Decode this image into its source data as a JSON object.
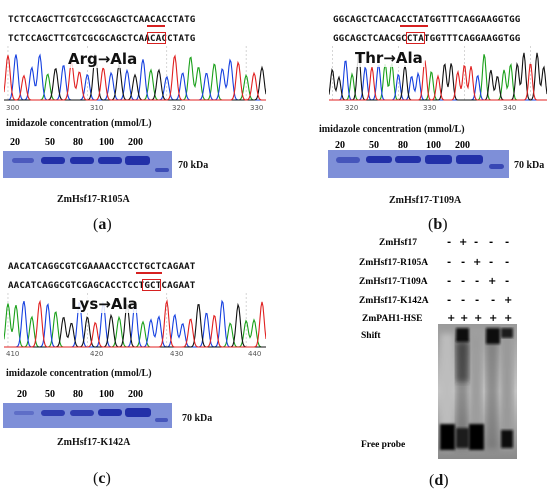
{
  "panels": {
    "a": {
      "seq_top": "TCTCCAGCTTCGTCCGGCAGCTCAACACCTATG",
      "seq_bottom": "TCTCCAGCTTCGTCGCGCAGCTCAACACCTATG",
      "mutation": "Arg→Ala",
      "ticks": [
        "300",
        "310",
        "320",
        "330"
      ],
      "conc_label": "imidazole concentration (mmol/L)",
      "lanes": [
        "20",
        "50",
        "80",
        "100",
        "200"
      ],
      "marker": "70 kDa",
      "name": "ZmHsf17-R105A",
      "letter": "a"
    },
    "b": {
      "seq_top": "GGCAGCTCAACACCTATGGTTTCAGGAAGGTGG",
      "seq_bottom": "GGCAGCTCAACGCCTATGGTTTCAGGAAGGTGG",
      "mutation": "Thr→Ala",
      "ticks": [
        "320",
        "330",
        "340"
      ],
      "conc_label": "imidazole concentration (mmol/L)",
      "lanes": [
        "20",
        "50",
        "80",
        "100",
        "200"
      ],
      "marker": "70 kDa",
      "name": "ZmHsf17-T109A",
      "letter": "b"
    },
    "c": {
      "seq_top": "AACATCAGGCGTCGAAAACCTCCTGCTCAGAAT",
      "seq_bottom": "AACATCAGGCGTCGAGCACCTCCTGCTCAGAAT",
      "mutation": "Lys→Ala",
      "ticks": [
        "410",
        "420",
        "430",
        "440"
      ],
      "conc_label": "imidazole concentration (mmol/L)",
      "lanes": [
        "20",
        "50",
        "80",
        "100",
        "200"
      ],
      "marker": "70 kDa",
      "name": "ZmHsf17-K142A",
      "letter": "c"
    },
    "d": {
      "rows": [
        {
          "label": "ZmHsf17",
          "signs": [
            "-",
            "+",
            "-",
            "-",
            "-"
          ]
        },
        {
          "label": "ZmHsf17-R105A",
          "signs": [
            "-",
            "-",
            "+",
            "-",
            "-"
          ]
        },
        {
          "label": "ZmHsf17-T109A",
          "signs": [
            "-",
            "-",
            "-",
            "+",
            "-"
          ]
        },
        {
          "label": "ZmHsf17-K142A",
          "signs": [
            "-",
            "-",
            "-",
            "-",
            "+"
          ]
        },
        {
          "label": "ZmPAH1-HSE",
          "signs": [
            "+",
            "+",
            "+",
            "+",
            "+"
          ]
        }
      ],
      "shift_label": "Shift",
      "free_label": "Free probe",
      "letter": "d"
    }
  },
  "colors": {
    "gel": "#7e8fd8",
    "band": "#2230a8",
    "highlight": "#d62020",
    "trace_a": "#1aa01a",
    "trace_c": "#1540e0",
    "trace_g": "#111111",
    "trace_t": "#e02020"
  }
}
